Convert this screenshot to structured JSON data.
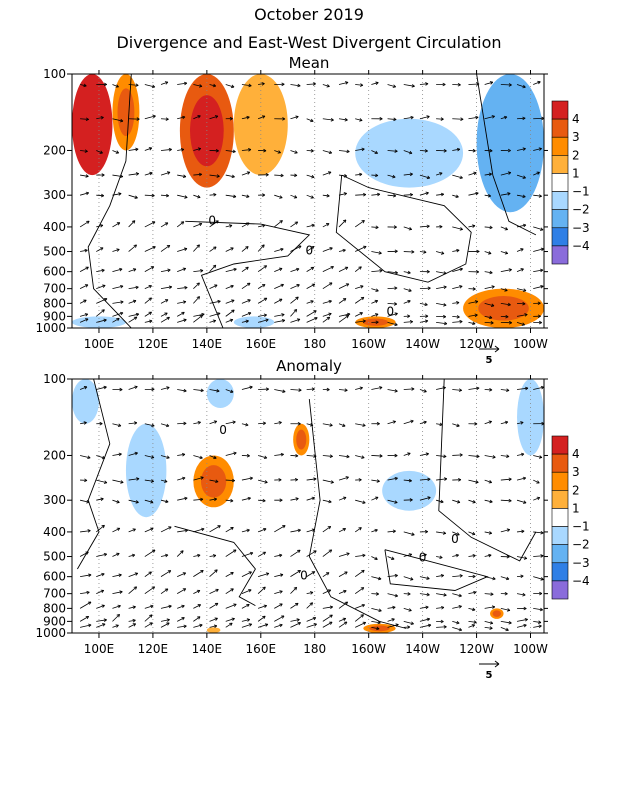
{
  "header": {
    "title": "October 2019",
    "subtitle": "Divergence and East-West Divergent Circulation"
  },
  "panels": [
    {
      "title": "Mean"
    },
    {
      "title": "Anomaly"
    }
  ],
  "colors": {
    "pos": [
      "#ffffff",
      "#ffb03a",
      "#ff8c00",
      "#e85a10",
      "#d42020"
    ],
    "neg": [
      "#a9d8ff",
      "#64b2f2",
      "#2f7fe6",
      "#8a6cdb"
    ]
  },
  "colorbar": {
    "labels": [
      "4",
      "3",
      "2",
      "1",
      "−1",
      "−2",
      "−3",
      "−4"
    ],
    "colors": [
      "#d42020",
      "#e85a10",
      "#ff8c00",
      "#ffb03a",
      "#ffffff",
      "#a9d8ff",
      "#64b2f2",
      "#2f7fe6",
      "#8a6cdb"
    ]
  },
  "vector_scale_label": "5",
  "chart_data": [
    {
      "type": "heatmap",
      "title": "Mean",
      "x_ticks": [
        "100E",
        "120E",
        "140E",
        "160E",
        "180",
        "160W",
        "140W",
        "120W",
        "100W"
      ],
      "x_tick_lon": [
        100,
        120,
        140,
        160,
        180,
        200,
        220,
        240,
        260
      ],
      "xlim_lon": [
        90,
        265
      ],
      "y_ticks": [
        "100",
        "200",
        "300",
        "400",
        "500",
        "600",
        "700",
        "800",
        "900",
        "1000"
      ],
      "y_tick_p": [
        100,
        200,
        300,
        400,
        500,
        600,
        700,
        800,
        900,
        1000
      ],
      "ylim_p": [
        100,
        1000
      ],
      "y_scale": "log-pressure (reversed)",
      "contour_label": "0",
      "features": [
        {
          "lon": [
            90,
            105
          ],
          "p": [
            100,
            250
          ],
          "value": 3.5
        },
        {
          "lon": [
            105,
            115
          ],
          "p": [
            100,
            200
          ],
          "value": 2
        },
        {
          "lon": [
            130,
            150
          ],
          "p": [
            100,
            280
          ],
          "value": 2.5
        },
        {
          "lon": [
            150,
            170
          ],
          "p": [
            100,
            250
          ],
          "value": 1.5
        },
        {
          "lon": [
            195,
            235
          ],
          "p": [
            150,
            280
          ],
          "value": -1.5
        },
        {
          "lon": [
            240,
            265
          ],
          "p": [
            100,
            350
          ],
          "value": -2
        },
        {
          "lon": [
            235,
            265
          ],
          "p": [
            700,
            1000
          ],
          "value": 2
        },
        {
          "lon": [
            195,
            210
          ],
          "p": [
            900,
            1000
          ],
          "value": 2
        },
        {
          "lon": [
            90,
            110
          ],
          "p": [
            900,
            1000
          ],
          "value": -1.5
        },
        {
          "lon": [
            150,
            165
          ],
          "p": [
            900,
            1000
          ],
          "value": -1.5
        }
      ]
    },
    {
      "type": "heatmap",
      "title": "Anomaly",
      "x_ticks": [
        "100E",
        "120E",
        "140E",
        "160E",
        "180",
        "160W",
        "140W",
        "120W",
        "100W"
      ],
      "x_tick_lon": [
        100,
        120,
        140,
        160,
        180,
        200,
        220,
        240,
        260
      ],
      "xlim_lon": [
        90,
        265
      ],
      "y_ticks": [
        "100",
        "200",
        "300",
        "400",
        "500",
        "600",
        "700",
        "800",
        "900",
        "1000"
      ],
      "y_tick_p": [
        100,
        200,
        300,
        400,
        500,
        600,
        700,
        800,
        900,
        1000
      ],
      "ylim_p": [
        100,
        1000
      ],
      "y_scale": "log-pressure (reversed)",
      "contour_label": "0",
      "features": [
        {
          "lon": [
            90,
            100
          ],
          "p": [
            100,
            150
          ],
          "value": -1.5
        },
        {
          "lon": [
            110,
            125
          ],
          "p": [
            150,
            350
          ],
          "value": -1.5
        },
        {
          "lon": [
            135,
            150
          ],
          "p": [
            200,
            320
          ],
          "value": 2
        },
        {
          "lon": [
            140,
            150
          ],
          "p": [
            100,
            130
          ],
          "value": -1.5
        },
        {
          "lon": [
            172,
            178
          ],
          "p": [
            150,
            200
          ],
          "value": 2
        },
        {
          "lon": [
            205,
            225
          ],
          "p": [
            230,
            330
          ],
          "value": -1.5
        },
        {
          "lon": [
            255,
            265
          ],
          "p": [
            100,
            200
          ],
          "value": -1.5
        },
        {
          "lon": [
            198,
            210
          ],
          "p": [
            920,
            1000
          ],
          "value": 2
        },
        {
          "lon": [
            245,
            250
          ],
          "p": [
            800,
            880
          ],
          "value": 2
        },
        {
          "lon": [
            140,
            145
          ],
          "p": [
            950,
            1000
          ],
          "value": 1.5
        }
      ]
    }
  ]
}
